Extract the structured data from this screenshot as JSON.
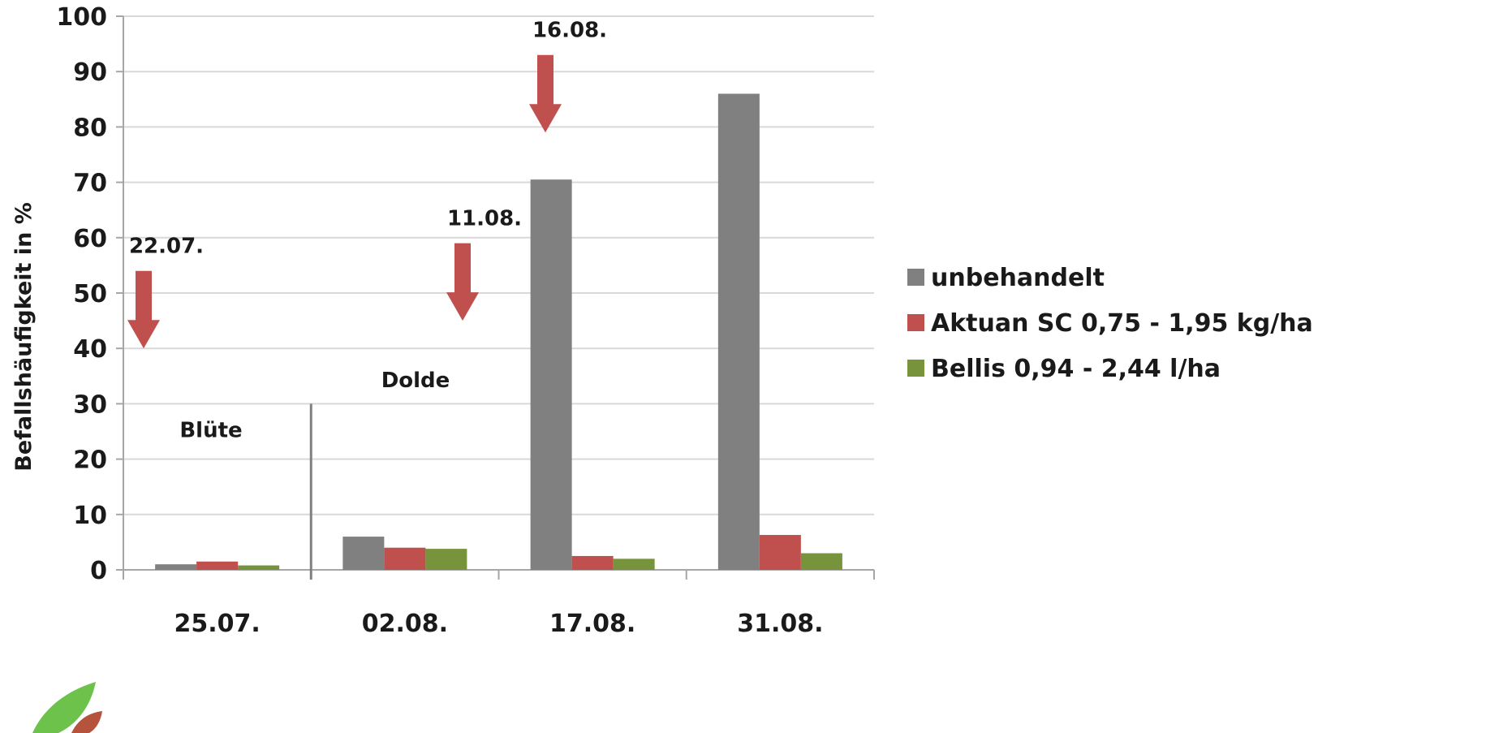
{
  "chart_data": {
    "type": "bar",
    "ylabel": "Befallshäufigkeit in %",
    "ylim": [
      0,
      100
    ],
    "yticks": [
      0,
      10,
      20,
      30,
      40,
      50,
      60,
      70,
      80,
      90,
      100
    ],
    "grid": true,
    "legend_position": "right",
    "categories": [
      "25.07.",
      "02.08.",
      "17.08.",
      "31.08."
    ],
    "series": [
      {
        "name": "unbehandelt",
        "color": "#808080",
        "values": [
          1,
          6,
          70.5,
          86
        ]
      },
      {
        "name": "Aktuan SC 0,75 - 1,95 kg/ha",
        "color": "#c0504d",
        "values": [
          1.5,
          4,
          2.5,
          6.3
        ]
      },
      {
        "name": "Bellis 0,94 - 2,44 l/ha",
        "color": "#77933c",
        "values": [
          0.8,
          3.8,
          2,
          3
        ]
      }
    ],
    "annotations": {
      "application_dates": [
        {
          "label": "22.07.",
          "arrow_top": 54,
          "arrow_tip": 40,
          "position": "before 25.07."
        },
        {
          "label": "11.08.",
          "arrow_top": 59,
          "arrow_tip": 45,
          "position": "between 02.08. and 17.08."
        },
        {
          "label": "16.08.",
          "arrow_top": 93,
          "arrow_tip": 79,
          "position": "above 17.08."
        }
      ],
      "growth_stages": [
        {
          "label": "Blüte",
          "y": 24
        },
        {
          "label": "Dolde",
          "y": 33
        }
      ],
      "arrow_color": "#c0504d",
      "stage_divider": {
        "position": "between 25.07. and 02.08.",
        "top": 30
      }
    }
  }
}
